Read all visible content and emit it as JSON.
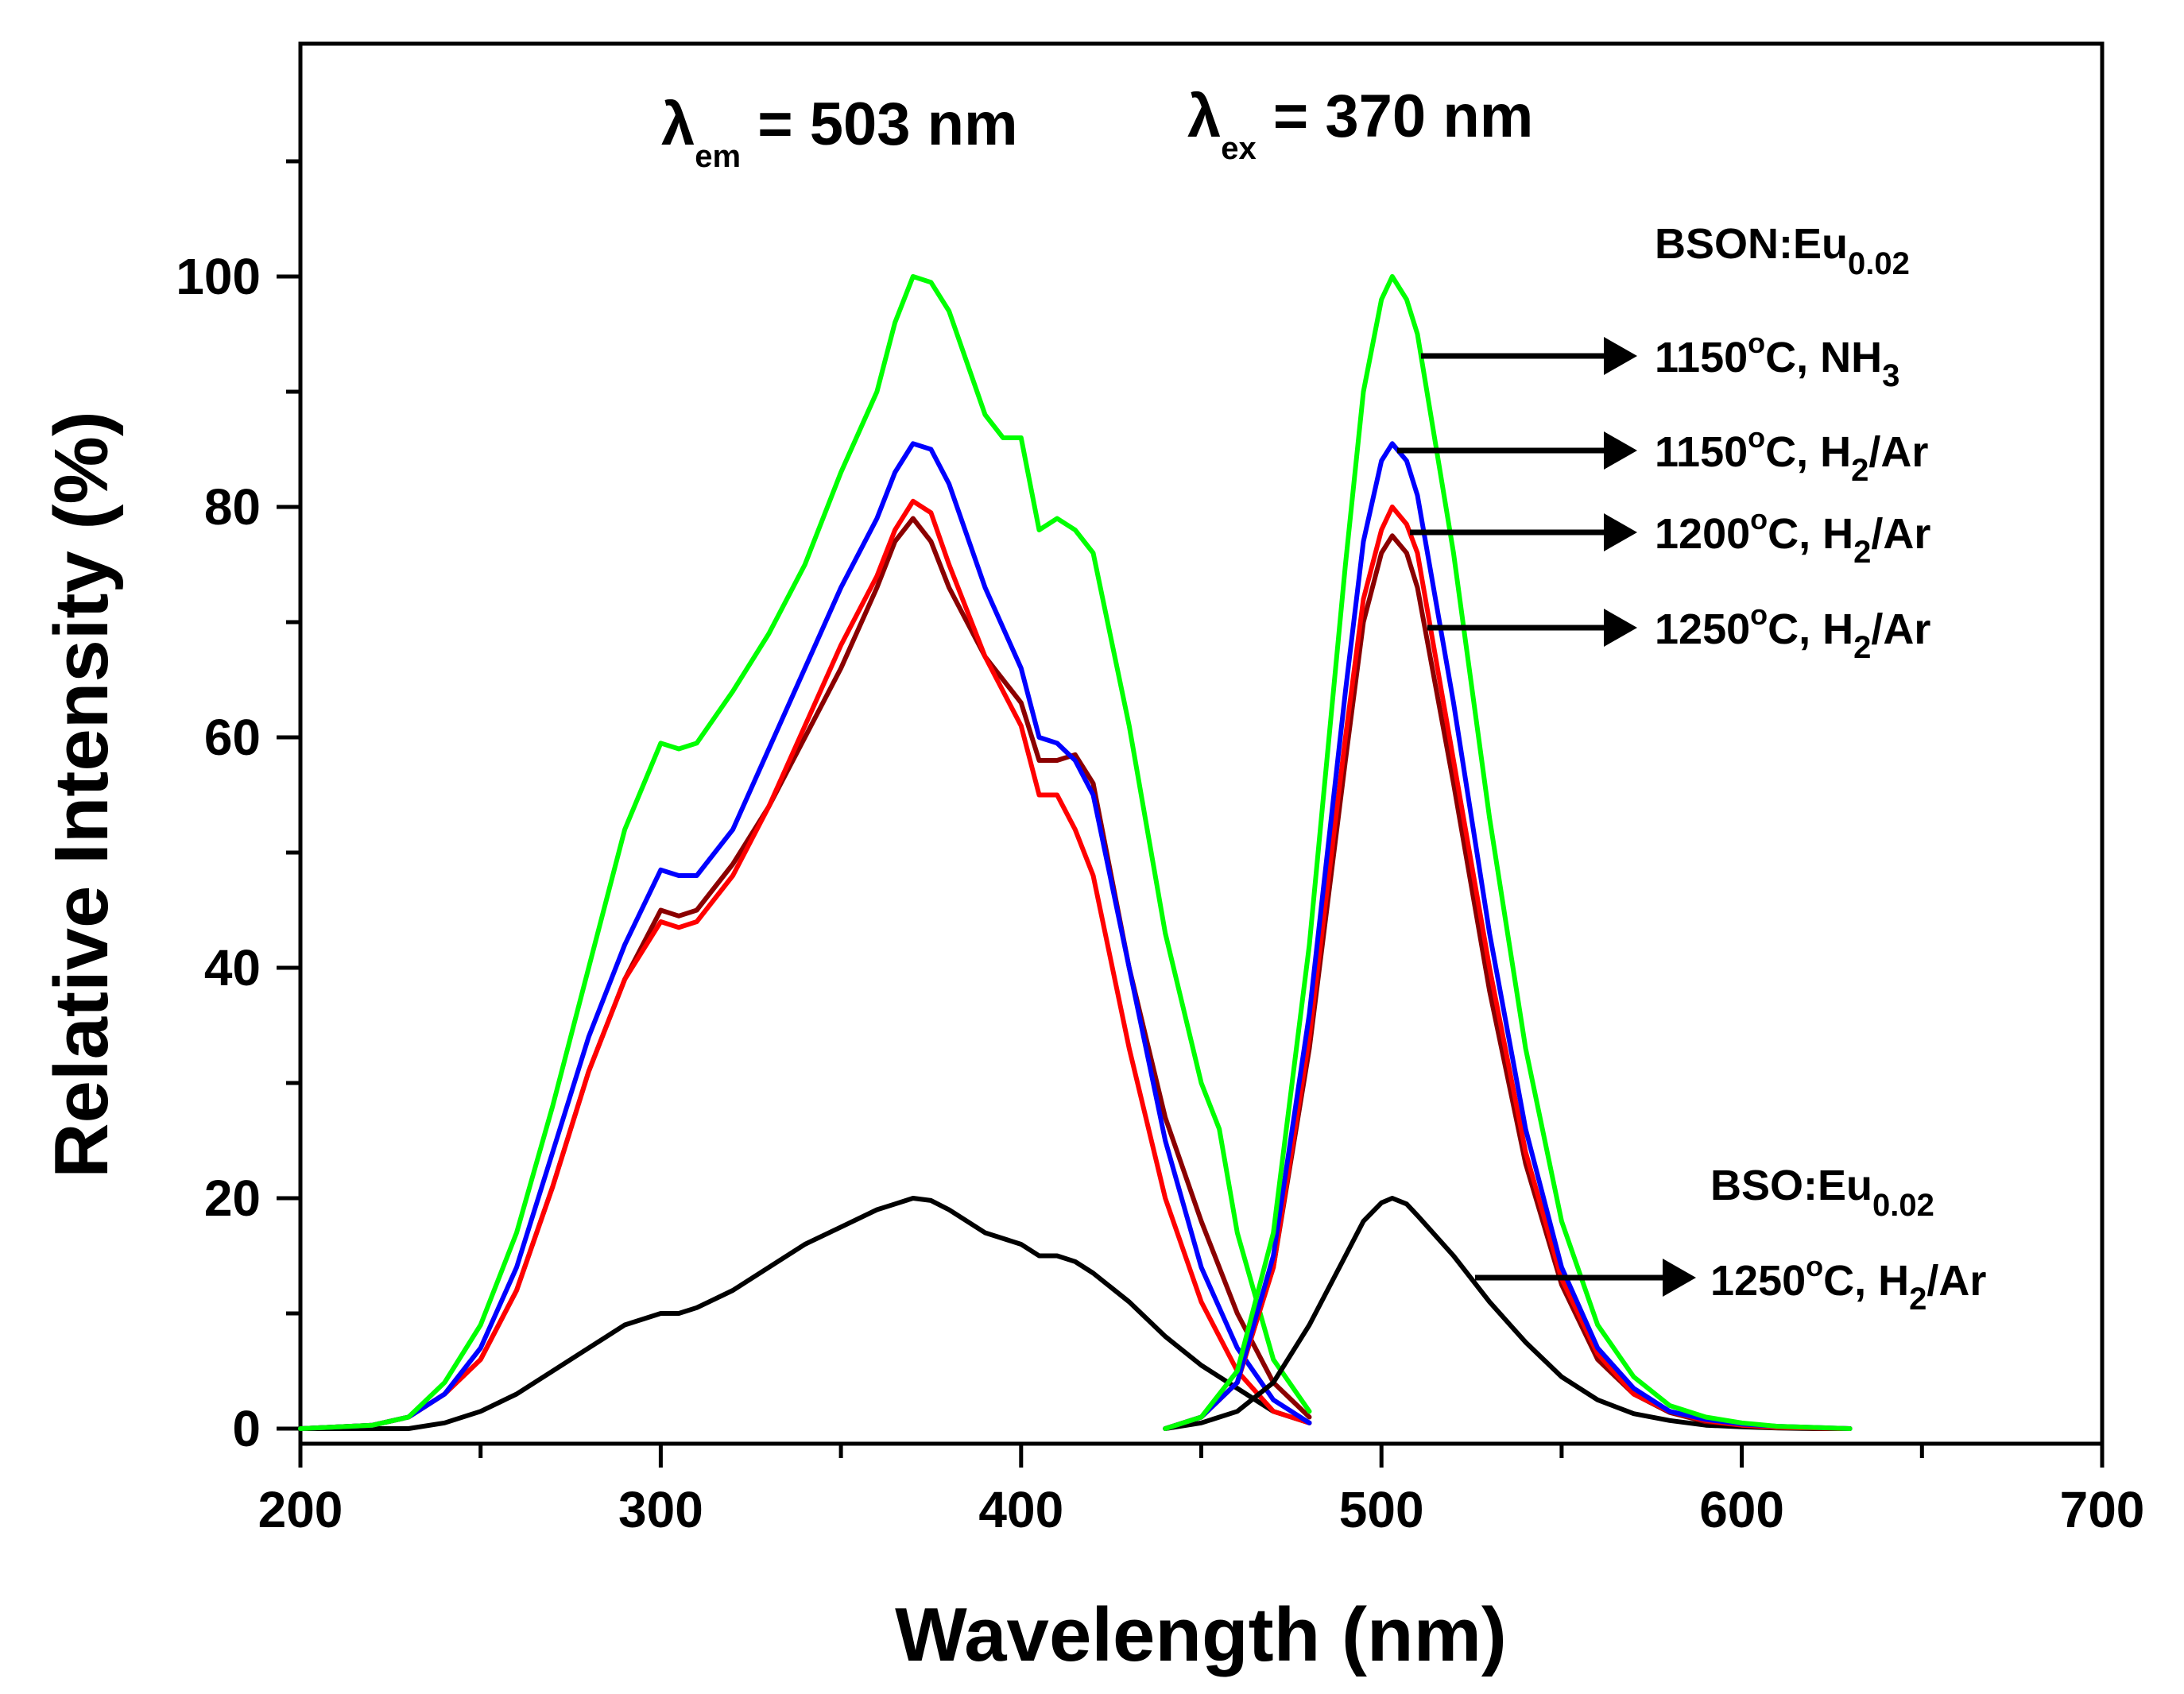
{
  "chart_data": {
    "type": "line",
    "title": "",
    "xlabel": "Wavelength (nm)",
    "ylabel": "Relative Intensity (%)",
    "xlim": [
      200,
      700
    ],
    "ylim": [
      -1,
      120
    ],
    "xticks": [
      200,
      300,
      400,
      500,
      600,
      700
    ],
    "yticks": [
      0,
      20,
      40,
      60,
      80,
      100
    ],
    "annotations": {
      "lambda_symbol": "λ",
      "em_sub": "em",
      "em_value": " = 503 nm",
      "ex_sub": "ex",
      "ex_value": " = 370 nm",
      "bson_main": "BSON:Eu",
      "bson_sub": "0.02",
      "bso_main": "BSO:Eu",
      "bso_sub": "0.02",
      "deg": "o",
      "label1_a": "1150",
      "label1_b": "C, NH",
      "label1_sub": "3",
      "label2_a": "1150",
      "label2_b": "C, H",
      "label2_sub": "2",
      "label2_c": "/Ar",
      "label3_a": "1200",
      "label3_b": "C, H",
      "label3_sub": "2",
      "label3_c": "/Ar",
      "label4_a": "1250",
      "label4_b": "C, H",
      "label4_sub": "2",
      "label4_c": "/Ar",
      "label5_a": "1250",
      "label5_b": "C, H",
      "label5_sub": "2",
      "label5_c": "/Ar"
    },
    "series": [
      {
        "name": "BSON:Eu0.02 1150°C, NH3 (excitation)",
        "color": "#00ff00",
        "x": [
          200,
          220,
          230,
          240,
          250,
          260,
          270,
          280,
          290,
          300,
          305,
          310,
          320,
          330,
          340,
          350,
          360,
          365,
          370,
          375,
          380,
          390,
          395,
          400,
          405,
          410,
          415,
          420,
          430,
          440,
          450,
          455,
          460,
          470,
          480
        ],
        "y": [
          0,
          0.3,
          1,
          4,
          9,
          17,
          28,
          40,
          52,
          59.5,
          59,
          59.5,
          64,
          69,
          75,
          83,
          90,
          96,
          100,
          99.5,
          97,
          88,
          86,
          86,
          78,
          79,
          78,
          76,
          61,
          43,
          30,
          26,
          17,
          6,
          1.5
        ]
      },
      {
        "name": "BSON:Eu0.02 1150°C, H2/Ar (excitation)",
        "color": "#0000ff",
        "x": [
          200,
          220,
          230,
          240,
          250,
          260,
          270,
          280,
          290,
          300,
          305,
          310,
          320,
          330,
          340,
          350,
          360,
          365,
          370,
          375,
          380,
          390,
          400,
          405,
          410,
          415,
          420,
          430,
          440,
          450,
          460,
          470,
          480
        ],
        "y": [
          0,
          0.3,
          1,
          3,
          7,
          14,
          24,
          34,
          42,
          48.5,
          48,
          48,
          52,
          59,
          66,
          73,
          79,
          83,
          85.5,
          85,
          82,
          73,
          66,
          60,
          59.5,
          58,
          55,
          40,
          25,
          14,
          7,
          2.5,
          0.5
        ]
      },
      {
        "name": "BSON:Eu0.02 1200°C, H2/Ar (excitation)",
        "color": "#ff0000",
        "x": [
          200,
          220,
          230,
          240,
          250,
          260,
          270,
          280,
          290,
          300,
          305,
          310,
          320,
          330,
          340,
          350,
          360,
          365,
          370,
          375,
          380,
          390,
          400,
          405,
          410,
          415,
          420,
          430,
          440,
          450,
          460,
          470,
          480
        ],
        "y": [
          0,
          0.3,
          1,
          3,
          6,
          12,
          21,
          31,
          39,
          44,
          43.5,
          44,
          48,
          54,
          61,
          68,
          74,
          78,
          80.5,
          79.5,
          75,
          67,
          61,
          55,
          55,
          52,
          48,
          33,
          20,
          11,
          5,
          1.5,
          0.5
        ]
      },
      {
        "name": "BSON:Eu0.02 1250°C, H2/Ar (excitation)",
        "color": "#8b0000",
        "x": [
          200,
          220,
          230,
          240,
          250,
          260,
          270,
          280,
          290,
          300,
          305,
          310,
          320,
          330,
          340,
          350,
          360,
          365,
          370,
          375,
          380,
          390,
          400,
          405,
          410,
          415,
          420,
          430,
          440,
          450,
          460,
          470,
          480
        ],
        "y": [
          0,
          0.3,
          1,
          3,
          6,
          12,
          21,
          31,
          39,
          45,
          44.5,
          45,
          49,
          54,
          60,
          66,
          73,
          77,
          79,
          77,
          73,
          67,
          63,
          58,
          58,
          58.5,
          56,
          40,
          27,
          18,
          10,
          4,
          1
        ]
      },
      {
        "name": "BSO:Eu0.02 1250°C, H2/Ar (excitation)",
        "color": "#000000",
        "x": [
          200,
          230,
          240,
          250,
          260,
          270,
          280,
          290,
          300,
          305,
          310,
          320,
          330,
          340,
          350,
          360,
          365,
          370,
          375,
          380,
          390,
          400,
          405,
          410,
          415,
          420,
          430,
          440,
          450,
          460,
          470,
          480
        ],
        "y": [
          0,
          0,
          0.5,
          1.5,
          3,
          5,
          7,
          9,
          10,
          10,
          10.5,
          12,
          14,
          16,
          17.5,
          19,
          19.5,
          20,
          19.8,
          19,
          17,
          16,
          15,
          15,
          14.5,
          13.5,
          11,
          8,
          5.5,
          3.5,
          1.5,
          0.5
        ]
      },
      {
        "name": "BSON:Eu0.02 1150°C, NH3 (emission)",
        "color": "#00ff00",
        "x": [
          440,
          450,
          460,
          470,
          480,
          490,
          495,
          500,
          503,
          507,
          510,
          520,
          530,
          540,
          550,
          560,
          570,
          580,
          590,
          600,
          610,
          620,
          630
        ],
        "y": [
          0,
          1,
          5,
          17,
          42,
          75,
          90,
          98,
          100,
          98,
          95,
          76,
          53,
          33,
          18,
          9,
          4.5,
          2,
          1,
          0.5,
          0.2,
          0.1,
          0
        ]
      },
      {
        "name": "BSON:Eu0.02 1150°C, H2/Ar (emission)",
        "color": "#0000ff",
        "x": [
          440,
          450,
          460,
          470,
          480,
          490,
          495,
          500,
          503,
          507,
          510,
          520,
          530,
          540,
          550,
          560,
          570,
          580,
          590,
          600,
          610,
          620,
          630
        ],
        "y": [
          0,
          1,
          4,
          15,
          36,
          64,
          77,
          84,
          85.5,
          84,
          81,
          63,
          43,
          26,
          14,
          7,
          3.5,
          1.5,
          0.8,
          0.4,
          0.2,
          0.1,
          0
        ]
      },
      {
        "name": "BSON:Eu0.02 1200°C, H2/Ar (emission)",
        "color": "#ff0000",
        "x": [
          440,
          450,
          460,
          470,
          480,
          490,
          495,
          500,
          503,
          507,
          510,
          520,
          530,
          540,
          550,
          560,
          570,
          580,
          590,
          600,
          610,
          620,
          630
        ],
        "y": [
          0,
          1,
          4,
          14,
          34,
          60,
          72,
          78,
          80,
          78.5,
          76,
          58,
          40,
          24,
          13,
          6.5,
          3,
          1.5,
          0.7,
          0.3,
          0.1,
          0.05,
          0
        ]
      },
      {
        "name": "BSON:Eu0.02 1250°C, H2/Ar (emission)",
        "color": "#8b0000",
        "x": [
          440,
          450,
          460,
          470,
          480,
          490,
          495,
          500,
          503,
          507,
          510,
          520,
          530,
          540,
          550,
          560,
          570,
          580,
          590,
          600,
          610,
          620,
          630
        ],
        "y": [
          0,
          1,
          4,
          14,
          33,
          58,
          70,
          76,
          77.5,
          76,
          73,
          56,
          38,
          23,
          12.5,
          6,
          3,
          1.4,
          0.6,
          0.3,
          0.1,
          0.05,
          0
        ]
      },
      {
        "name": "BSO:Eu0.02 1250°C, H2/Ar (emission)",
        "color": "#000000",
        "x": [
          440,
          450,
          460,
          470,
          480,
          490,
          495,
          500,
          503,
          507,
          510,
          520,
          530,
          540,
          550,
          560,
          570,
          580,
          590,
          600,
          610,
          620,
          630
        ],
        "y": [
          0,
          0.5,
          1.5,
          4,
          9,
          15,
          18,
          19.6,
          20,
          19.5,
          18.5,
          15,
          11,
          7.5,
          4.5,
          2.5,
          1.3,
          0.7,
          0.3,
          0.15,
          0.05,
          0,
          0
        ]
      }
    ]
  }
}
